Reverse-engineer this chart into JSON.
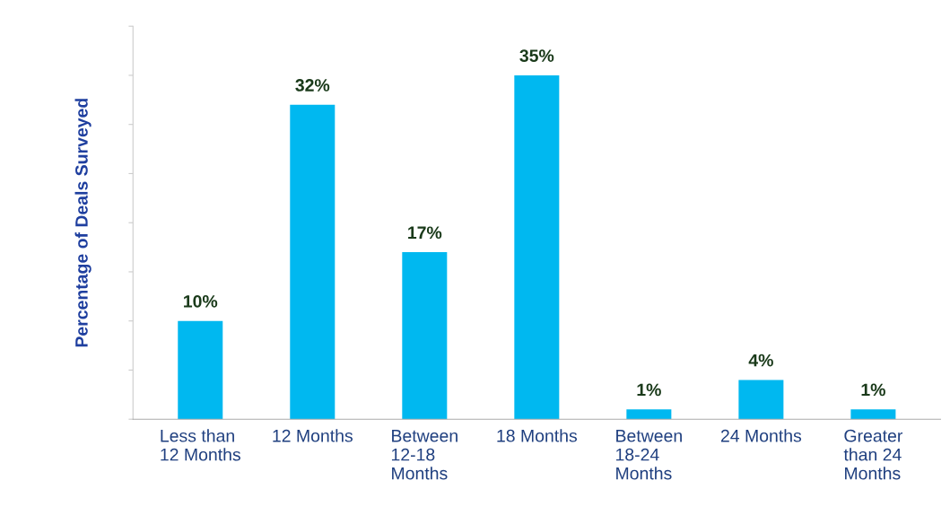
{
  "chart_data": {
    "type": "bar",
    "ylabel": "Percentage of Deals Surveyed",
    "categories": [
      "Less than\n12 Months",
      "12 Months",
      "Between\n12-18\nMonths",
      "18 Months",
      "Between\n18-24\nMonths",
      "24 Months",
      "Greater\nthan 24\nMonths"
    ],
    "values": [
      10,
      32,
      17,
      35,
      1,
      4,
      1
    ],
    "value_labels": [
      "10%",
      "32%",
      "17%",
      "35%",
      "1%",
      "4%",
      "1%"
    ],
    "color": "#00b8f0",
    "ylim": [
      0,
      40
    ],
    "yticks": [
      {
        "value": 0,
        "label": null
      },
      {
        "value": 5,
        "label": null
      },
      {
        "value": 10,
        "label": null
      },
      {
        "value": 15,
        "label": null
      },
      {
        "value": 20,
        "label": null
      },
      {
        "value": 25,
        "label": null
      },
      {
        "value": 30,
        "label": null
      },
      {
        "value": 35,
        "label": null
      },
      {
        "value": 40,
        "label": null
      }
    ],
    "tick_labels": "x",
    "grid": false,
    "legend": false
  }
}
